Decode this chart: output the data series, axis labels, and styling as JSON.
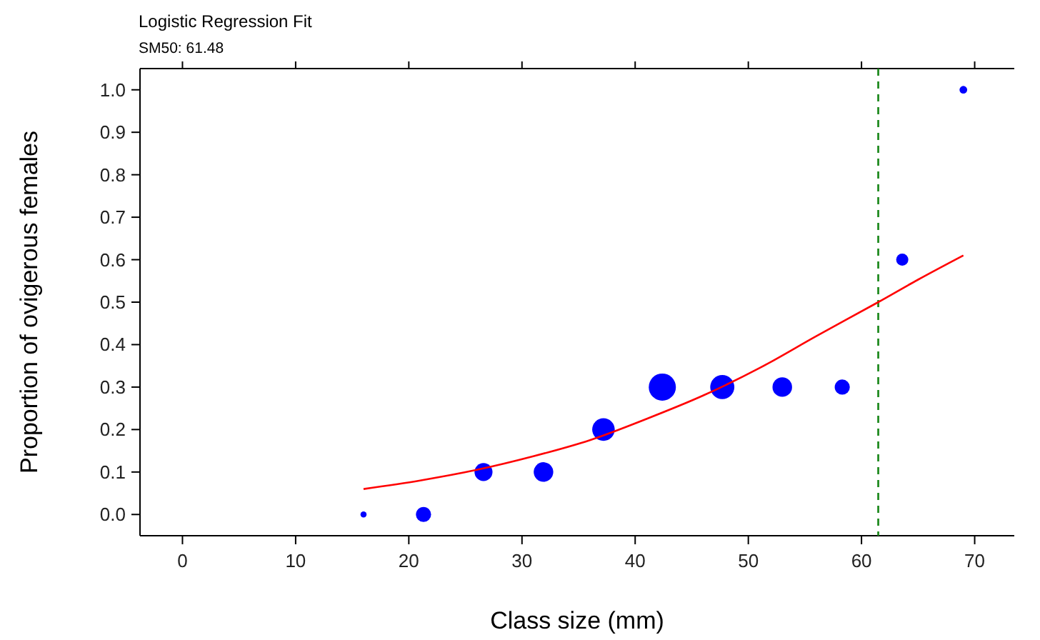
{
  "chart_data": {
    "type": "bubble",
    "title": "Logistic Regression Fit",
    "subtitle": "SM50: 61.48",
    "xlabel": "Class size (mm)",
    "ylabel": "Proportion of ovigerous females",
    "x": [
      16,
      21.3,
      26.6,
      31.9,
      37.2,
      42.4,
      47.7,
      53,
      58.3,
      63.6,
      69
    ],
    "series": [
      {
        "color": "#0000ff",
        "values": [
          0,
          0,
          0.1,
          0.1,
          0.2,
          0.3,
          0.3,
          0.3,
          0.3,
          0.6,
          1.0
        ],
        "sizes": [
          0.05,
          0.31,
          0.44,
          0.52,
          0.69,
          1,
          0.79,
          0.52,
          0.31,
          0.2,
          0.08
        ]
      },
      {
        "type": "line",
        "color": "#ff0000",
        "x": [
          16,
          21,
          26,
          31,
          36,
          41,
          46,
          51,
          56,
          61.48,
          65,
          69
        ],
        "values": [
          0.06,
          0.08,
          0.105,
          0.137,
          0.175,
          0.225,
          0.28,
          0.345,
          0.42,
          0.5,
          0.553,
          0.61
        ]
      }
    ],
    "xlim": [
      -3.5,
      73.5
    ],
    "xticks": [
      0,
      10,
      20,
      30,
      40,
      50,
      60,
      70
    ],
    "ylim": [
      -0.05,
      1.05
    ],
    "yticks": [
      {
        "value": 0,
        "label": "0.0"
      },
      {
        "value": 0.1,
        "label": "0.1"
      },
      {
        "value": 0.2,
        "label": "0.2"
      },
      {
        "value": 0.3,
        "label": "0.3"
      },
      {
        "value": 0.4,
        "label": "0.4"
      },
      {
        "value": 0.5,
        "label": "0.5"
      },
      {
        "value": 0.6,
        "label": "0.6"
      },
      {
        "value": 0.7,
        "label": "0.7"
      },
      {
        "value": 0.8,
        "label": "0.8"
      },
      {
        "value": 0.9,
        "label": "0.9"
      },
      {
        "value": 1,
        "label": "1.0"
      }
    ],
    "ref_lines": [
      {
        "axis": "x",
        "value": 61.48,
        "color": "#228b22",
        "line_style": "dashed"
      }
    ],
    "grid": false
  }
}
